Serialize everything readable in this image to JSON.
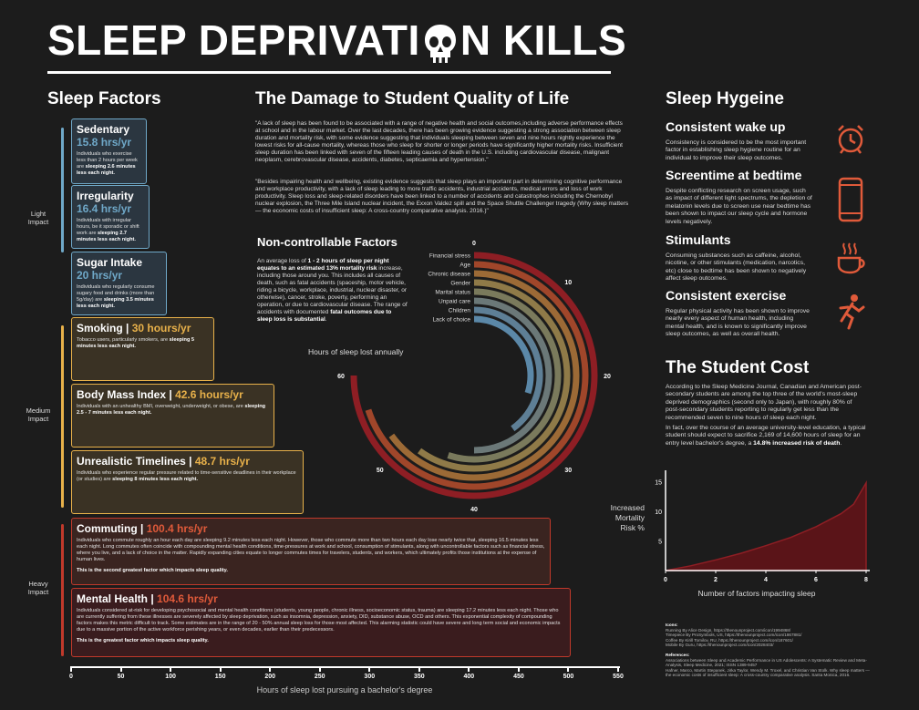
{
  "title": {
    "before": "SLEEP DEPRIVATI",
    "after": "N KILLS",
    "skull": "skull-icon"
  },
  "sleep_factors": {
    "heading": "Sleep Factors",
    "impacts": {
      "light": "Light\nImpact",
      "medium": "Medium\nImpact",
      "heavy": "Heavy\nImpact"
    },
    "items": [
      {
        "name": "Sedentary",
        "hours": "15.8 hrs/yr",
        "desc": "Individuals who exercise less than 2 hours per week are ",
        "bold": "sleeping 2.6 minutes less each night.",
        "note": ""
      },
      {
        "name": "Irregularity",
        "hours": "16.4 hrs/yr",
        "desc": "Individuals with irregular hours, be it sporadic or shift work are ",
        "bold": "sleeping 2.7 minutes less each night.",
        "note": ""
      },
      {
        "name": "Sugar Intake",
        "hours": "20 hrs/yr",
        "desc": "Individuals who regularly consume sugary food and drinks (more than 5g/day) are ",
        "bold": "sleeping 3.5 minutes less each night.",
        "note": ""
      },
      {
        "name": "Smoking",
        "hours": "30 hours/yr",
        "desc": "Tobacco users, particularly smokers, are ",
        "bold": "sleeping 5 minutes less each night.",
        "note": ""
      },
      {
        "name": "Body Mass Index",
        "hours": "42.6 hours/yr",
        "desc": "Individuals with an unhealthy BMI, overweight, underweight, or obese, are ",
        "bold": "sleeping 2.5 - 7 minutes less each night.",
        "note": ""
      },
      {
        "name": "Unrealistic Timelines",
        "hours": "48.7 hrs/yr",
        "desc": "Individuals who experience regular pressure related to time-sensitive deadlines in their workplace (or studies) are ",
        "bold": "sleeping 8 minutes less each night.",
        "note": ""
      },
      {
        "name": "Commuting",
        "hours": "100.4 hrs/yr",
        "desc": "Individuals who commute roughly an hour each day are sleeping 9.2 minutes less each night. However, those who commute more than two hours each day lose nearly twice that, sleeping 16.5 minutes less each night. Long commutes often coincide with compounding mental health conditions, time-pressures at work and school, consumption of stimulants, along with uncontrollable factors such as financial stress, where you live, and a lack of choice in the matter. Rapidly expanding cities equate to longer commutes times for travelers, students, and workers, which ultimately profits those institutions at the expense of human lives.",
        "bold": "",
        "note": "This is the second greatest factor which impacts sleep quality."
      },
      {
        "name": "Mental Health",
        "hours": "104.6 hrs/yr",
        "desc": "Individuals considered at-risk for developing psychosocial and mental health conditions (students, young people, chronic illness, socioeconomic status, trauma) are sleeping 17.2 minutes less each night. Those who are currently suffering from these illnesses are severely affected by sleep deprivation, such as insomnia, depression, anxiety, DID, substance abuse, OCD and others. This exponential complexity of compounding factors makes this metric difficult to track. Some estimates are in the range of 20 - 50% annual sleep loss for those most affected. This alarming statistic could have severe and long term social and economic impacts due to a massive portion of the active workforce perishing years, or even decades, earlier than their predecessors.",
        "bold": "",
        "note": "This is the greatest factor which impacts sleep quality."
      }
    ],
    "axis_title": "Hours of sleep lost pursuing a bachelor's degree",
    "axis_ticks": [
      "0",
      "50",
      "100",
      "150",
      "200",
      "250",
      "300",
      "350",
      "400",
      "450",
      "500",
      "550"
    ]
  },
  "damage": {
    "heading": "The Damage to Student Quality of Life",
    "para1": "\"A lack of sleep has been found to be associated with a range of negative health and social outcomes,including adverse performance effects at school and in the labour market. Over the last decades, there has been growing evidence suggesting a strong association between sleep duration and mortality risk, with some evidence suggesting that individuals sleeping between seven and nine hours nightly experience the lowest risks for all-cause mortality, whereas those who sleep for shorter or longer periods have significantly higher mortality risks. Insufficient sleep duration has been linked with seven of the fifteen leading causes of death in the U.S. including cardiovascular disease, malignant neoplasm, cerebrovascular disease, accidents, diabetes, septicaemia and hypertension.\"",
    "para2": "\"Besides impairing health and wellbeing, existing evidence suggests that sleep plays an important part in determining cognitive performance and workplace productivity, with a lack of sleep leading to more traffic accidents, industrial accidents, medical errors and loss of work productivity. Sleep loss and sleep-related disorders have been linked to a number of accidents and catastrophes including the Chernobyl nuclear explosion, the Three Mile Island nuclear incident, the Exxon Valdez spill and the Space Shuttle Challenger tragedy (Why sleep matters — the economic costs of insufficient sleep: A cross-country comparative analysis. 2016.)\""
  },
  "noncontrol": {
    "heading": "Non-controllable Factors",
    "text_a": "An average loss of ",
    "text_b": "1 - 2 hours of sleep per night equates to an estimated 13% mortality risk",
    "text_c": " increase, including those around you. This includes all causes of death, such as fatal accidents (spaceship, motor vehicle, riding a bicycle, workplace, industrial, nuclear disaster, or otherwise), cancer, stroke, poverty, performing an operation, or due to cardiovascular disease. The range of accidents with documented ",
    "text_d": "fatal outcomes due to sleep loss is substantial",
    "text_e": ".",
    "radial_label": "Hours of sleep lost annually"
  },
  "chart_data": [
    {
      "type": "bar",
      "orientation": "horizontal",
      "categories": [
        "Sedentary",
        "Irregularity",
        "Sugar Intake",
        "Smoking",
        "Body Mass Index",
        "Unrealistic Timelines",
        "Commuting",
        "Mental Health"
      ],
      "values": [
        76,
        79,
        96,
        144,
        204,
        234,
        482,
        502
      ],
      "xlabel": "Hours of sleep lost pursuing a bachelor's degree",
      "xlim": [
        0,
        550
      ],
      "colors": [
        "#6fa8c8",
        "#6fa8c8",
        "#6fa8c8",
        "#e8b14a",
        "#e8b14a",
        "#e8b14a",
        "#c0392b",
        "#c0392b"
      ]
    },
    {
      "type": "bar",
      "subtype": "radial",
      "categories": [
        "Financial stress",
        "Age",
        "Chronic disease",
        "Gender",
        "Marital status",
        "Unpaid care",
        "Children",
        "Lack of choice"
      ],
      "values": [
        60,
        56,
        52,
        48,
        44,
        40,
        32,
        24
      ],
      "tick_labels": [
        "0",
        "10",
        "20",
        "30",
        "40",
        "50",
        "60"
      ],
      "ylim": [
        0,
        60
      ],
      "xlabel": "Hours of sleep lost annually",
      "colors": [
        "#8e1e24",
        "#a0462a",
        "#9c6a36",
        "#8f7a48",
        "#7a7a5c",
        "#6b7878",
        "#5e7f96",
        "#5b88a8"
      ]
    },
    {
      "type": "area",
      "x": [
        0,
        1,
        2,
        3,
        4,
        5,
        6,
        7,
        7.5,
        8
      ],
      "y": [
        0,
        0.8,
        1.8,
        2.9,
        4.2,
        5.6,
        7.4,
        9.6,
        11.2,
        14.8
      ],
      "xlabel": "Number of factors impacting sleep",
      "ylabel": "Increased Mortality Risk %",
      "xticks": [
        "0",
        "2",
        "4",
        "6",
        "8"
      ],
      "yticks": [
        "5",
        "10",
        "15"
      ],
      "xlim": [
        0,
        8
      ],
      "ylim": [
        0,
        16
      ],
      "colors": [
        "#8e1e24"
      ]
    }
  ],
  "hygiene": {
    "heading": "Sleep Hygeine",
    "items": [
      {
        "title": "Consistent wake up",
        "text": "Consistency is considered to be the most important factor in establishing sleep hygiene routine for an individual to improve their sleep outcomes.",
        "icon": "alarm-clock-icon"
      },
      {
        "title": "Screentime at bedtime",
        "text": "Despite conflicting research on screen usage, such as impact of different light spectrums, the depletion of melatonin levels due to screen use near bedtime has been shown to impact our sleep cycle and hormone levels negatively.",
        "icon": "smartphone-icon"
      },
      {
        "title": "Stimulants",
        "text": "Consuming substances such as caffeine, alcohol, nicotine, or other stimulants (medication, narcotics, etc) close to bedtime has been shown to negatively affect sleep outcomes.",
        "icon": "coffee-cup-icon"
      },
      {
        "title": "Consistent exercise",
        "text": "Regular physical activity has been shown to improve nearly every aspect of human health, including mental health, and is known to significantly improve sleep outcomes, as well as overall health.",
        "icon": "running-person-icon"
      }
    ]
  },
  "student_cost": {
    "heading": "The Student Cost",
    "para1": "According to the Sleep Medicine Journal, Canadian and American post-secondary students are among the top three of the world's most-sleep deprived demographics (second only to Japan), with roughly 80% of post-secondary students reporting to regularly get less than the recommended seven to nine hours of sleep each night.",
    "para2a": "In fact, over the course of an average university-level education, a typical student should expect to sacrifice 2,169 of 14,600 hours of sleep for an entry level bachelor's degree, a ",
    "para2b": "14.8% increased risk of death",
    "para2c": "."
  },
  "credits": {
    "icons_heading": "Icons:",
    "icons": [
      "Running By Alice Design, https://thenounproject.com/icon/1994868/",
      "Timepiece By ProSymbols, US, https://thenounproject.com/icon/1867881/",
      "Coffee By Kirill Tomilov, RU, https://thenounproject.com/icon/187601/",
      "Mobile By Guru, https://thenounproject.com/icon/2028403/"
    ],
    "refs_heading": "References:",
    "refs": [
      "Associations between Sleep and Academic Performance in US Adolescents: A Systematic Review and Meta-Analysis, Sleep Medicine, 2021; ISSN 1389-9457",
      "Hafner, Marco, Martin Stepanek, Jirka Taylor, Wendy M. Troxel, and Christian Van Stolk. Why sleep matters — the economic costs of insufficient sleep: A cross-country comparative analysis. Santa Monica, 2016."
    ]
  }
}
